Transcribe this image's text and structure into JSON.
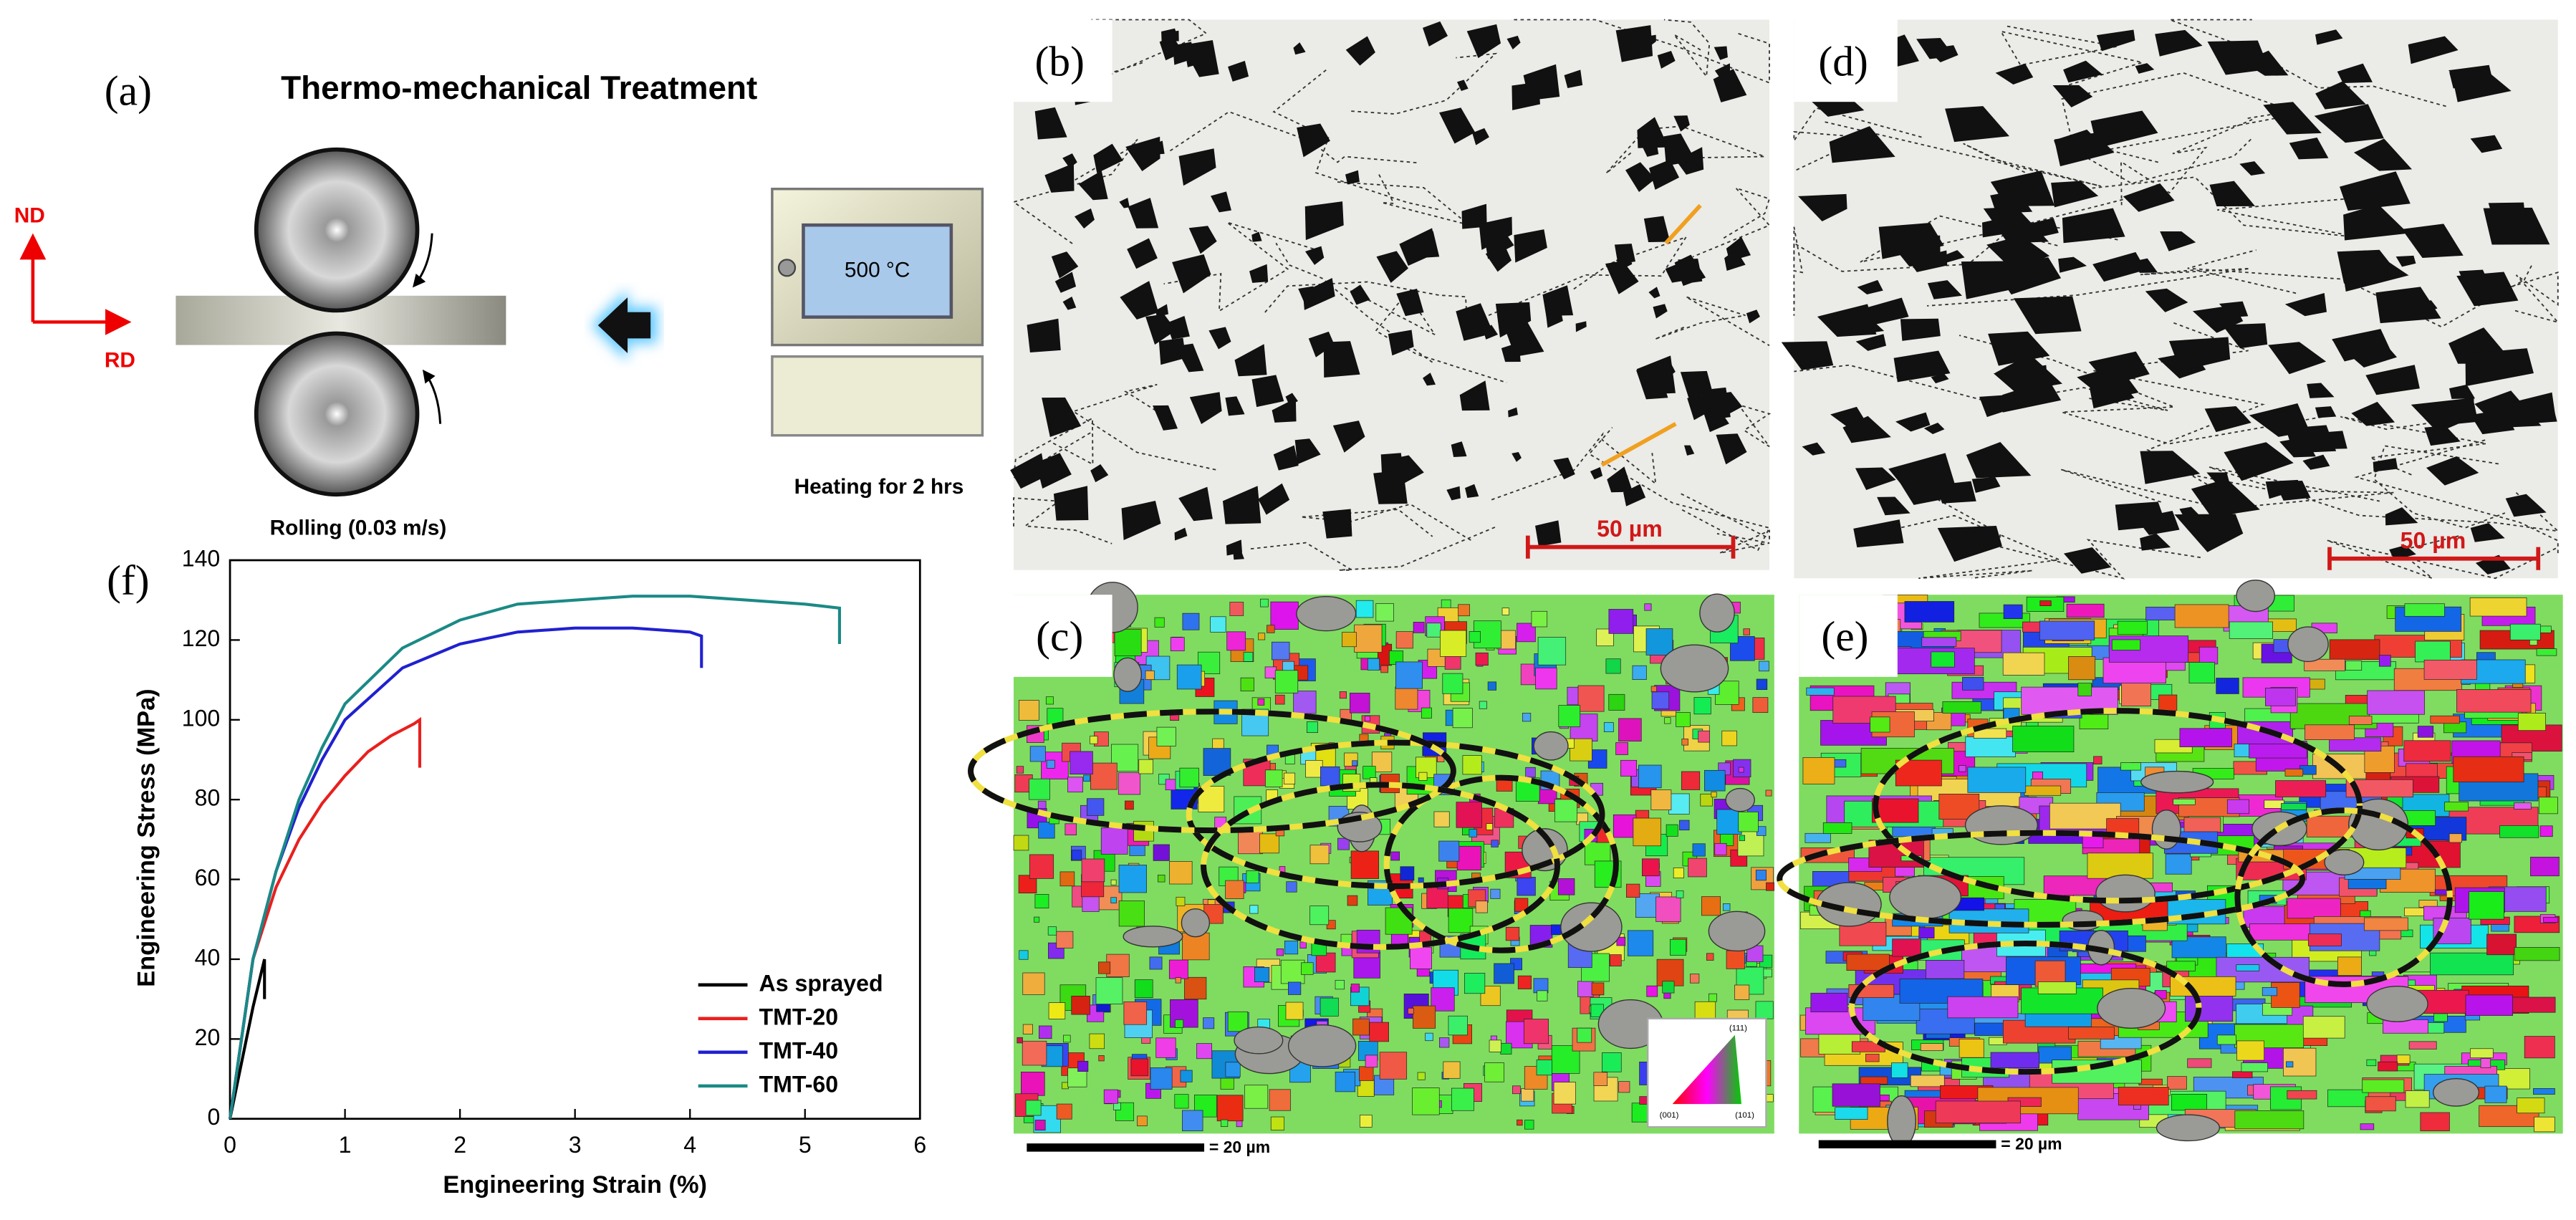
{
  "panels": {
    "a": {
      "label": "(a)",
      "title": "Thermo-mechanical Treatment",
      "axis_nd": "ND",
      "axis_rd": "RD",
      "furnace_temp": "500 °C",
      "rolling": "Rolling (0.03 m/s)",
      "heating": "Heating for 2 hrs"
    },
    "b": {
      "label": "(b)",
      "scale_bar": "50 µm"
    },
    "c": {
      "label": "(c)",
      "scale_bar": "= 20 µm",
      "ipf": [
        "(111)",
        "(001)",
        "(101)"
      ]
    },
    "d": {
      "label": "(d)",
      "scale_bar": "50 µm"
    },
    "e": {
      "label": "(e)",
      "scale_bar": "= 20 µm"
    }
  },
  "chart_data": {
    "type": "line",
    "label": "(f)",
    "x_label": "Engineering Strain (%)",
    "y_label": "Engineering Stress (MPa)",
    "xlim": [
      0,
      6
    ],
    "xticks": [
      0,
      1,
      2,
      3,
      4,
      5,
      6
    ],
    "ylim": [
      0,
      140
    ],
    "yticks": [
      0,
      20,
      40,
      60,
      80,
      100,
      120,
      140
    ],
    "legend": "lower right",
    "series": [
      {
        "name": "As sprayed",
        "color": "#000000",
        "x": [
          0,
          0.1,
          0.2,
          0.3,
          0.3
        ],
        "values": [
          0,
          14,
          28,
          40,
          30
        ]
      },
      {
        "name": "TMT-20",
        "color": "#e8201e",
        "x": [
          0,
          0.2,
          0.4,
          0.6,
          0.8,
          1.0,
          1.2,
          1.4,
          1.6,
          1.65,
          1.65
        ],
        "values": [
          0,
          40,
          58,
          70,
          79,
          86,
          92,
          96,
          99,
          100,
          88
        ]
      },
      {
        "name": "TMT-40",
        "color": "#2020d0",
        "x": [
          0,
          0.2,
          0.4,
          0.6,
          0.8,
          1.0,
          1.5,
          2.0,
          2.5,
          3.0,
          3.5,
          4.0,
          4.1,
          4.1
        ],
        "values": [
          0,
          40,
          62,
          78,
          90,
          100,
          113,
          119,
          122,
          123,
          123,
          122,
          121,
          113
        ]
      },
      {
        "name": "TMT-60",
        "color": "#1a8a86",
        "x": [
          0,
          0.2,
          0.4,
          0.6,
          0.8,
          1.0,
          1.5,
          2.0,
          2.5,
          3.0,
          3.5,
          4.0,
          4.5,
          5.0,
          5.3,
          5.3
        ],
        "values": [
          0,
          40,
          62,
          80,
          93,
          104,
          118,
          125,
          129,
          130,
          131,
          131,
          130,
          129,
          128,
          119
        ]
      }
    ]
  }
}
